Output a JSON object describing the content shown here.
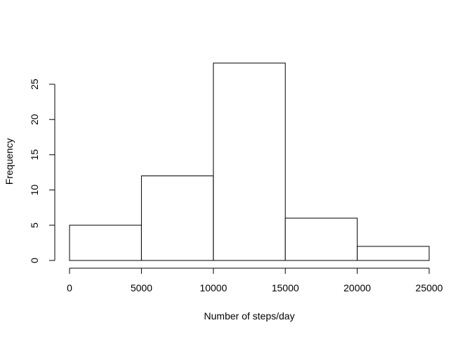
{
  "chart_data": {
    "type": "bar",
    "title": "",
    "xlabel": "Number of steps/day",
    "ylabel": "Frequency",
    "bins": [
      {
        "from": 0,
        "to": 5000,
        "count": 5
      },
      {
        "from": 5000,
        "to": 10000,
        "count": 12
      },
      {
        "from": 10000,
        "to": 15000,
        "count": 28
      },
      {
        "from": 15000,
        "to": 20000,
        "count": 6
      },
      {
        "from": 20000,
        "to": 25000,
        "count": 2
      }
    ],
    "xlim": [
      0,
      25000
    ],
    "ylim": [
      0,
      28
    ],
    "x_ticks": [
      0,
      5000,
      10000,
      15000,
      20000,
      25000
    ],
    "x_tick_labels": [
      "0",
      "5000",
      "10000",
      "15000",
      "20000",
      "25000"
    ],
    "y_ticks": [
      0,
      5,
      10,
      15,
      20,
      25
    ],
    "y_tick_labels": [
      "0",
      "5",
      "10",
      "15",
      "20",
      "25"
    ],
    "grid": false,
    "legend": "none"
  }
}
